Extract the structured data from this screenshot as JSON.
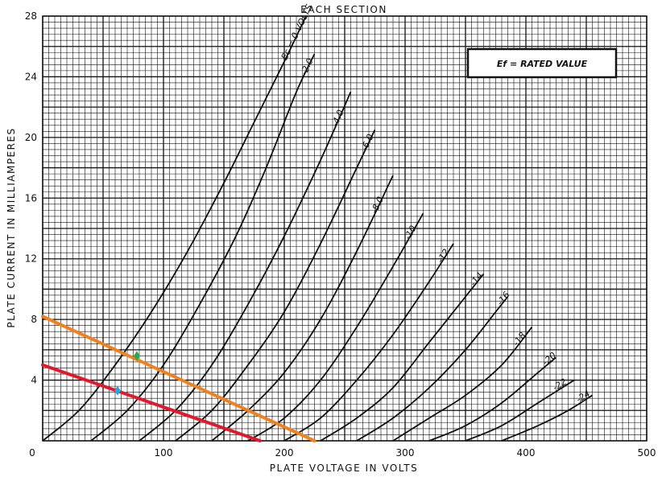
{
  "chart_data": {
    "type": "line",
    "title": "EACH SECTION",
    "xlabel": "PLATE VOLTAGE IN VOLTS",
    "ylabel": "PLATE CURRENT IN MILLIAMPERES",
    "xlim": [
      0,
      500
    ],
    "ylim": [
      0,
      28
    ],
    "grid": true,
    "x_ticks": [
      "0",
      "100",
      "200",
      "300",
      "400",
      "500"
    ],
    "y_ticks": [
      "0",
      "4",
      "8",
      "12",
      "16",
      "20",
      "24",
      "28"
    ],
    "annotation_box": "Ef = RATED VALUE",
    "series": [
      {
        "name": "Ec = 0 VOLTS",
        "points": [
          [
            0,
            0
          ],
          [
            30,
            2
          ],
          [
            60,
            5
          ],
          [
            90,
            8.5
          ],
          [
            120,
            12.5
          ],
          [
            150,
            17
          ],
          [
            175,
            21
          ],
          [
            200,
            25
          ],
          [
            218,
            28
          ]
        ]
      },
      {
        "name": "-2.0",
        "points": [
          [
            40,
            0
          ],
          [
            70,
            2
          ],
          [
            100,
            5
          ],
          [
            130,
            9
          ],
          [
            160,
            13.5
          ],
          [
            185,
            18
          ],
          [
            210,
            23
          ],
          [
            225,
            25.5
          ]
        ]
      },
      {
        "name": "-4.0",
        "points": [
          [
            80,
            0
          ],
          [
            110,
            2
          ],
          [
            140,
            5
          ],
          [
            170,
            9
          ],
          [
            200,
            13.5
          ],
          [
            230,
            18.5
          ],
          [
            255,
            23
          ]
        ]
      },
      {
        "name": "-6.0",
        "points": [
          [
            110,
            0
          ],
          [
            140,
            2
          ],
          [
            170,
            5
          ],
          [
            200,
            8.5
          ],
          [
            230,
            13
          ],
          [
            260,
            18
          ],
          [
            275,
            20.5
          ]
        ]
      },
      {
        "name": "-8.0",
        "points": [
          [
            140,
            0
          ],
          [
            170,
            2
          ],
          [
            200,
            4.5
          ],
          [
            230,
            8
          ],
          [
            260,
            12.5
          ],
          [
            290,
            17.5
          ]
        ]
      },
      {
        "name": "-10",
        "points": [
          [
            170,
            0
          ],
          [
            200,
            1.5
          ],
          [
            230,
            4
          ],
          [
            260,
            7.5
          ],
          [
            290,
            11.5
          ],
          [
            315,
            15
          ]
        ]
      },
      {
        "name": "-12",
        "points": [
          [
            200,
            0
          ],
          [
            230,
            1.5
          ],
          [
            260,
            4
          ],
          [
            290,
            7
          ],
          [
            320,
            10.5
          ],
          [
            340,
            13
          ]
        ]
      },
      {
        "name": "-14",
        "points": [
          [
            230,
            0
          ],
          [
            260,
            1.5
          ],
          [
            290,
            3.5
          ],
          [
            320,
            6.5
          ],
          [
            350,
            9.5
          ],
          [
            365,
            11
          ]
        ]
      },
      {
        "name": "-16",
        "points": [
          [
            260,
            0
          ],
          [
            290,
            1.5
          ],
          [
            320,
            3.5
          ],
          [
            350,
            6
          ],
          [
            375,
            8.5
          ],
          [
            385,
            9.5
          ]
        ]
      },
      {
        "name": "-18",
        "points": [
          [
            290,
            0
          ],
          [
            320,
            1.5
          ],
          [
            350,
            3
          ],
          [
            380,
            5
          ],
          [
            405,
            7.5
          ]
        ]
      },
      {
        "name": "-20",
        "points": [
          [
            320,
            0
          ],
          [
            350,
            1
          ],
          [
            380,
            2.5
          ],
          [
            410,
            4.5
          ],
          [
            425,
            5.5
          ]
        ]
      },
      {
        "name": "-22",
        "points": [
          [
            350,
            0
          ],
          [
            380,
            1
          ],
          [
            410,
            2.5
          ],
          [
            440,
            4
          ]
        ]
      },
      {
        "name": "-24",
        "points": [
          [
            380,
            0
          ],
          [
            410,
            1
          ],
          [
            435,
            2
          ],
          [
            455,
            3
          ]
        ]
      }
    ],
    "load_lines": [
      {
        "color": "#f0811f",
        "points": [
          [
            0,
            8.2
          ],
          [
            225,
            0
          ]
        ]
      },
      {
        "color": "#e0192b",
        "points": [
          [
            0,
            5
          ],
          [
            180,
            0
          ]
        ]
      }
    ],
    "markers": [
      {
        "color": "#2ea84f",
        "x": 78,
        "y": 5.6
      },
      {
        "color": "#27a6e0",
        "x": 62,
        "y": 3.3
      }
    ],
    "colors": {
      "curve": "#111111",
      "grid": "#111111"
    }
  }
}
